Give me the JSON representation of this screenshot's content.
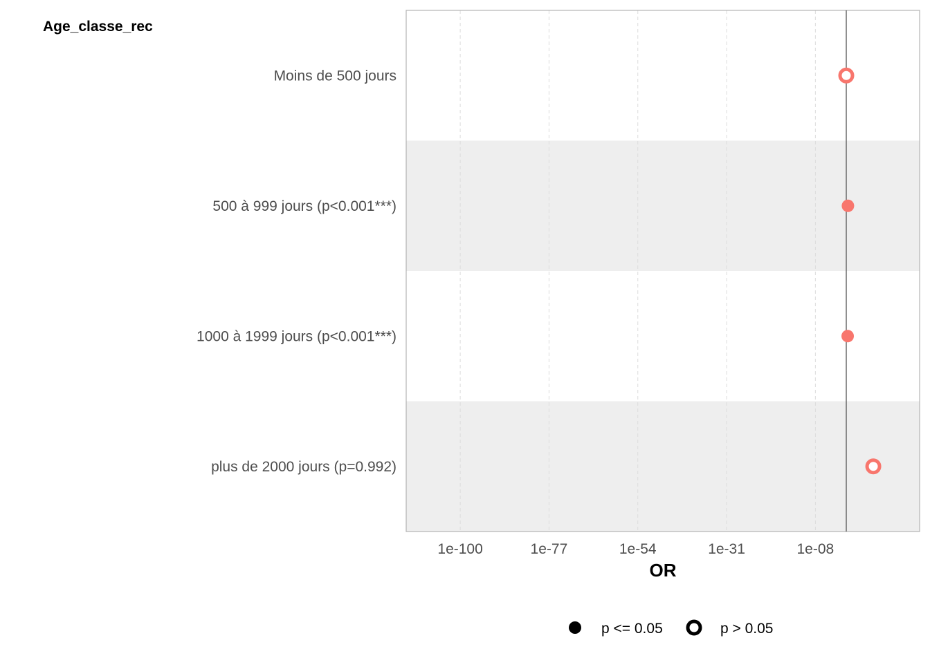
{
  "chart_data": {
    "type": "scatter",
    "variable_label": "Age_classe_rec",
    "xlabel": "OR",
    "x_scale": "log10",
    "x_ticks": [
      {
        "value": 1e-100,
        "label": "1e-100"
      },
      {
        "value": 1e-77,
        "label": "1e-77"
      },
      {
        "value": 1e-54,
        "label": "1e-54"
      },
      {
        "value": 1e-31,
        "label": "1e-31"
      },
      {
        "value": 1e-08,
        "label": "1e-08"
      }
    ],
    "xlim": [
      1e-114,
      1e+19
    ],
    "reference_line": 1,
    "grid": "vertical dashed",
    "categories": [
      "Moins de 500 jours",
      "500 à 999 jours (p<0.001***)",
      "1000 à 1999 jours (p<0.001***)",
      "plus de 2000 jours (p=0.992)"
    ],
    "series": [
      {
        "points": [
          {
            "category": "Moins de 500 jours",
            "or": 1,
            "significant": false
          },
          {
            "category": "500 à 999 jours (p<0.001***)",
            "or": 2.7,
            "significant": true
          },
          {
            "category": "1000 à 1999 jours (p<0.001***)",
            "or": 2.3,
            "significant": true
          },
          {
            "category": "plus de 2000 jours (p=0.992)",
            "or": 10000000.0,
            "significant": false
          }
        ]
      }
    ],
    "point_color": "#F8766D",
    "legend": {
      "placement": "bottom",
      "items": [
        {
          "label": "p <= 0.05",
          "shape": "filled-circle"
        },
        {
          "label": "p > 0.05",
          "shape": "open-circle"
        }
      ]
    }
  }
}
